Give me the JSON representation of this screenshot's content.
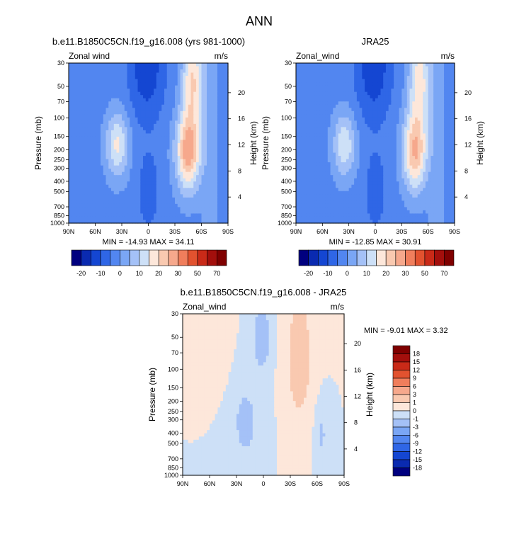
{
  "figure": {
    "title": "ANN"
  },
  "chart_data": [
    {
      "type": "heatmap",
      "panel_id": "top-left",
      "title": "b.e11.B1850C5CN.f19_g16.008 (yrs 981-1000)",
      "left_label": "Zonal wind",
      "right_label": "m/s",
      "ylabel": "Pressure (mb)",
      "y2label": "Height (km)",
      "stats": "MIN = -14.93  MAX = 34.11",
      "x_ticks": [
        "90N",
        "60N",
        "30N",
        "0",
        "30S",
        "60S",
        "90S"
      ],
      "y_ticks": [
        "30",
        "50",
        "70",
        "100",
        "150",
        "200",
        "250",
        "300",
        "400",
        "500",
        "700",
        "850",
        "1000"
      ],
      "y2_ticks": [
        "20",
        "16",
        "12",
        "8",
        "4"
      ],
      "colorbar_labels": [
        "-20",
        "-10",
        "0",
        "10",
        "20",
        "30",
        "50",
        "70"
      ],
      "peak_min": -14.93,
      "peak_max": 34.11
    },
    {
      "type": "heatmap",
      "panel_id": "top-right",
      "title": "JRA25",
      "left_label": "Zonal_wind",
      "right_label": "m/s",
      "ylabel": "Pressure (mb)",
      "y2label": "Height (km)",
      "stats": "MIN = -12.85  MAX = 30.91",
      "x_ticks": [
        "90N",
        "60N",
        "30N",
        "0",
        "30S",
        "60S",
        "90S"
      ],
      "y_ticks": [
        "30",
        "50",
        "70",
        "100",
        "150",
        "200",
        "250",
        "300",
        "400",
        "500",
        "700",
        "850",
        "1000"
      ],
      "y2_ticks": [
        "20",
        "16",
        "12",
        "8",
        "4"
      ],
      "colorbar_labels": [
        "-20",
        "-10",
        "0",
        "10",
        "20",
        "30",
        "50",
        "70"
      ],
      "peak_min": -12.85,
      "peak_max": 30.91
    },
    {
      "type": "heatmap",
      "panel_id": "bottom",
      "title": "b.e11.B1850C5CN.f19_g16.008 - JRA25",
      "left_label": "Zonal_wind",
      "right_label": "m/s",
      "ylabel": "Pressure (mb)",
      "y2label": "Height (km)",
      "stats": "MIN = -9.01  MAX =  3.32",
      "x_ticks": [
        "90N",
        "60N",
        "30N",
        "0",
        "30S",
        "60S",
        "90S"
      ],
      "y_ticks": [
        "30",
        "50",
        "70",
        "100",
        "150",
        "200",
        "250",
        "300",
        "400",
        "500",
        "700",
        "850",
        "1000"
      ],
      "y2_ticks": [
        "20",
        "16",
        "12",
        "8",
        "4"
      ],
      "colorbar_labels": [
        "18",
        "15",
        "12",
        "9",
        "6",
        "3",
        "1",
        "0",
        "-1",
        "-3",
        "-6",
        "-9",
        "-12",
        "-15",
        "-18"
      ],
      "peak_min": -9.01,
      "peak_max": 3.32
    }
  ],
  "palette": {
    "top": [
      "#00007f",
      "#0a2ab0",
      "#1446d2",
      "#2f66e6",
      "#5286f0",
      "#7aa6f5",
      "#a4c1f7",
      "#cde0f7",
      "#fde7da",
      "#f9c9b0",
      "#f6a88c",
      "#f07e5c",
      "#e2522f",
      "#c92a18",
      "#a30f0c",
      "#7f0000"
    ],
    "diff_neg": [
      "#cde0f7",
      "#a4c1f7",
      "#7aa6f5",
      "#5286f0",
      "#2f66e6",
      "#1446d2",
      "#0a2ab0",
      "#00007f"
    ],
    "diff_pos": [
      "#fde7da",
      "#f9c9b0",
      "#f6a88c",
      "#f07e5c",
      "#e2522f",
      "#c92a18",
      "#a30f0c",
      "#7f0000"
    ]
  }
}
